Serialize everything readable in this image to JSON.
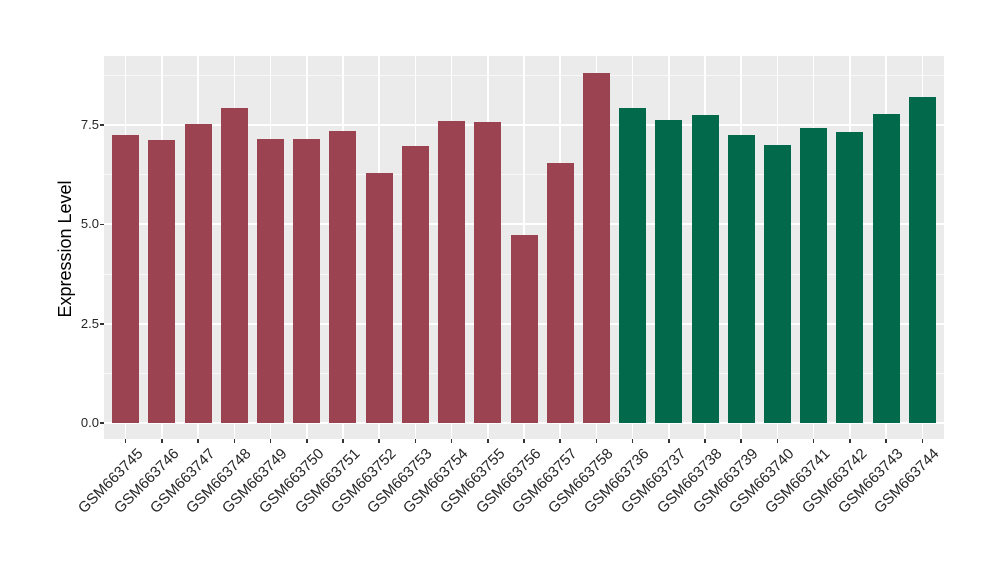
{
  "chart_data": {
    "type": "bar",
    "title": "",
    "xlabel": "",
    "ylabel": "Expression Level",
    "categories": [
      "GSM663745",
      "GSM663746",
      "GSM663747",
      "GSM663748",
      "GSM663749",
      "GSM663750",
      "GSM663751",
      "GSM663752",
      "GSM663753",
      "GSM663754",
      "GSM663755",
      "GSM663756",
      "GSM663757",
      "GSM663758",
      "GSM663736",
      "GSM663737",
      "GSM663738",
      "GSM663739",
      "GSM663740",
      "GSM663741",
      "GSM663742",
      "GSM663743",
      "GSM663744"
    ],
    "values": [
      7.26,
      7.12,
      7.53,
      7.93,
      7.16,
      7.14,
      7.34,
      6.3,
      6.97,
      7.61,
      7.58,
      4.74,
      6.55,
      8.81,
      7.92,
      7.64,
      7.76,
      7.25,
      7.0,
      7.44,
      7.33,
      7.79,
      8.22
    ],
    "groups": [
      {
        "name": "group-1",
        "color": "#9C4351",
        "first_category": "GSM663745",
        "last_category": "GSM663758",
        "count": 14
      },
      {
        "name": "group-2",
        "color": "#03694B",
        "first_category": "GSM663736",
        "last_category": "GSM663744",
        "count": 9
      }
    ],
    "bar_colors": [
      "#9C4351",
      "#9C4351",
      "#9C4351",
      "#9C4351",
      "#9C4351",
      "#9C4351",
      "#9C4351",
      "#9C4351",
      "#9C4351",
      "#9C4351",
      "#9C4351",
      "#9C4351",
      "#9C4351",
      "#9C4351",
      "#03694B",
      "#03694B",
      "#03694B",
      "#03694B",
      "#03694B",
      "#03694B",
      "#03694B",
      "#03694B",
      "#03694B"
    ],
    "ytick_labels": [
      "0.0",
      "2.5",
      "5.0",
      "7.5"
    ],
    "ytick_values": [
      0.0,
      2.5,
      5.0,
      7.5
    ],
    "minor_ytick_values": [
      1.25,
      3.75,
      6.25,
      8.75
    ],
    "ylim": [
      -0.4,
      9.24
    ],
    "grid": "on",
    "legend": "none",
    "colors": {
      "panel_bg": "#EBEBEB",
      "grid": "#FFFFFF",
      "tick_mark": "#333333",
      "axis_text": "#262626",
      "axis_title": "#000000"
    }
  }
}
